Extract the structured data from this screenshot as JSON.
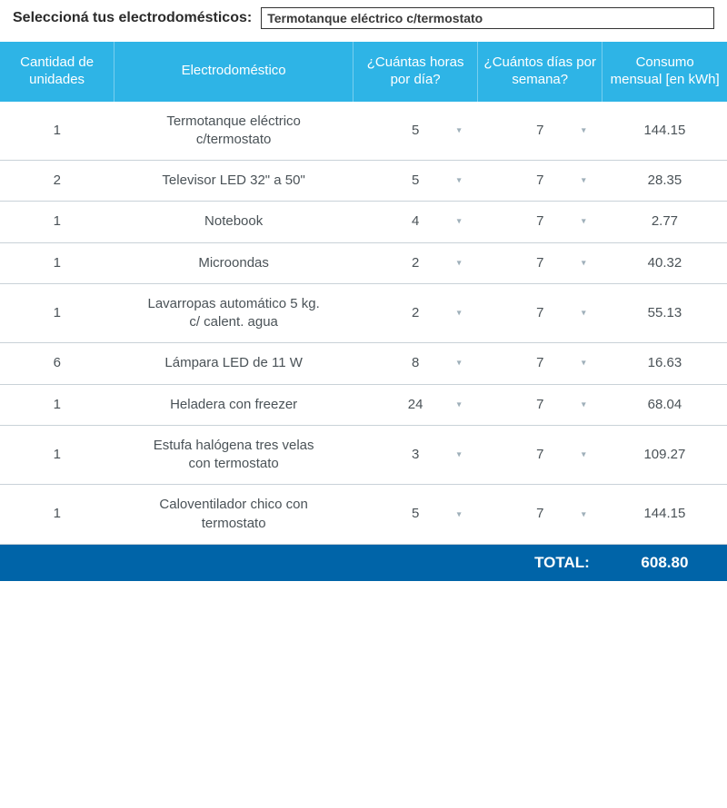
{
  "header": {
    "label": "Seleccioná tus electrodomésticos:",
    "selected": "Termotanque eléctrico c/termostato"
  },
  "columns": {
    "units": "Cantidad de unidades",
    "appliance": "Electrodoméstico",
    "hours": "¿Cuántas horas por día?",
    "days": "¿Cuántos días por semana?",
    "consumption": "Consumo mensual [en kWh]"
  },
  "rows": [
    {
      "units": "1",
      "name": "Termotanque eléctrico c/termostato",
      "hours": "5",
      "days": "7",
      "consumption": "144.15"
    },
    {
      "units": "2",
      "name": "Televisor LED 32\" a 50\"",
      "hours": "5",
      "days": "7",
      "consumption": "28.35"
    },
    {
      "units": "1",
      "name": "Notebook",
      "hours": "4",
      "days": "7",
      "consumption": "2.77"
    },
    {
      "units": "1",
      "name": "Microondas",
      "hours": "2",
      "days": "7",
      "consumption": "40.32"
    },
    {
      "units": "1",
      "name": "Lavarropas automático 5 kg. c/ calent. agua",
      "hours": "2",
      "days": "7",
      "consumption": "55.13"
    },
    {
      "units": "6",
      "name": "Lámpara LED de 11 W",
      "hours": "8",
      "days": "7",
      "consumption": "16.63"
    },
    {
      "units": "1",
      "name": "Heladera con freezer",
      "hours": "24",
      "days": "7",
      "consumption": "68.04"
    },
    {
      "units": "1",
      "name": "Estufa halógena tres velas con termostato",
      "hours": "3",
      "days": "7",
      "consumption": "109.27"
    },
    {
      "units": "1",
      "name": "Caloventilador chico con termostato",
      "hours": "5",
      "days": "7",
      "consumption": "144.15"
    }
  ],
  "footer": {
    "label": "TOTAL:",
    "value": "608.80"
  },
  "style": {
    "header_bg": "#2eb4e6",
    "footer_bg": "#0064a8",
    "border_color": "#c9d2d8",
    "text_color": "#4a5257",
    "caret_color": "#9fb0ba"
  }
}
